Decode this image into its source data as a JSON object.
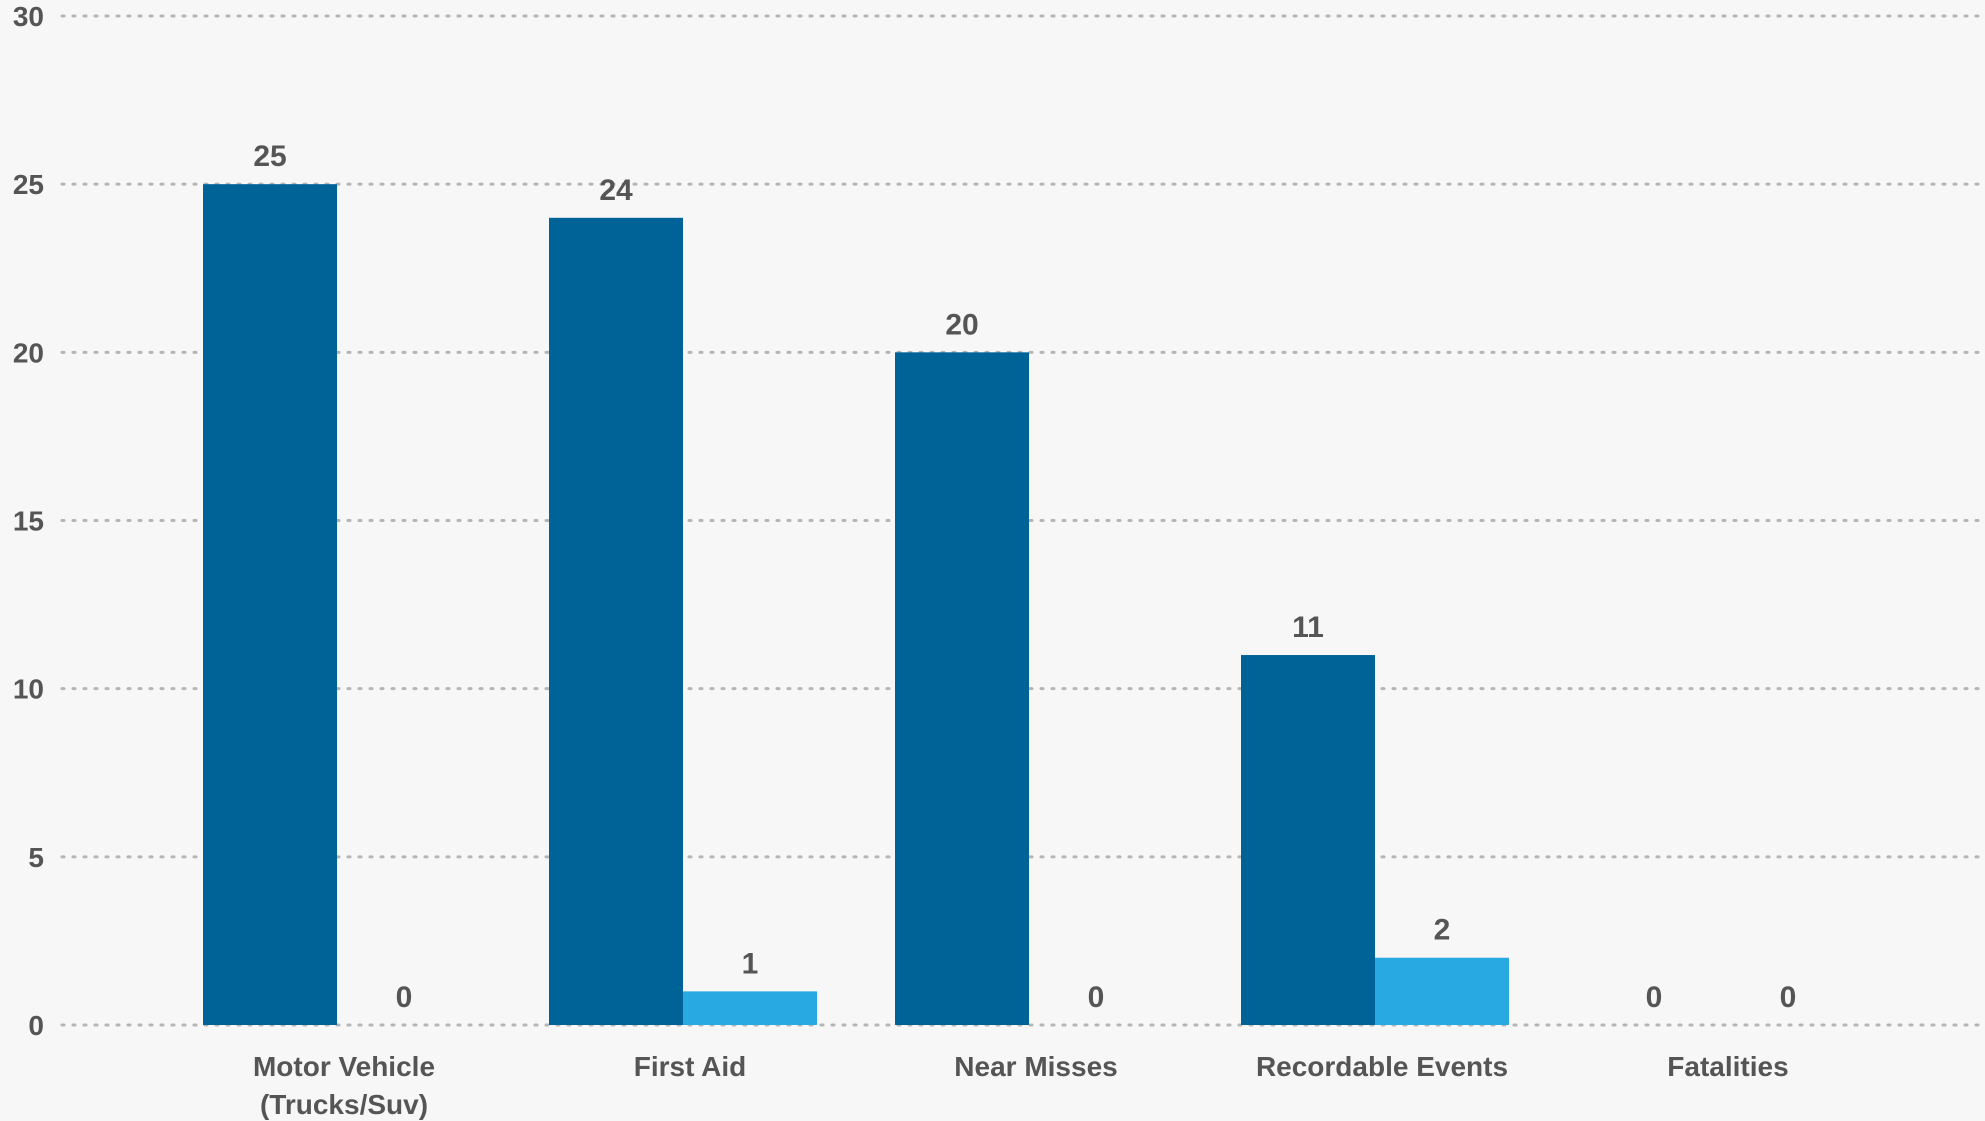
{
  "chart_data": {
    "type": "bar",
    "categories": [
      [
        "Motor Vehicle",
        "(Trucks/Suv)"
      ],
      [
        "First Aid"
      ],
      [
        "Near Misses"
      ],
      [
        "Recordable Events"
      ],
      [
        "Fatalities"
      ]
    ],
    "series": [
      {
        "values": [
          25,
          24,
          20,
          11,
          0
        ],
        "color": "#006398"
      },
      {
        "values": [
          0,
          1,
          0,
          2,
          0
        ],
        "color": "#29a9e1"
      }
    ],
    "ylim": [
      0,
      30
    ],
    "yticks": [
      0,
      5,
      10,
      15,
      20,
      25,
      30
    ],
    "grid": true,
    "grid_style": "dotted",
    "legend": "none",
    "title": "",
    "xlabel": "",
    "ylabel": "",
    "colors": {
      "background": "#f7f7f7",
      "grid": "#b5b5b5",
      "text": "#555555"
    }
  }
}
